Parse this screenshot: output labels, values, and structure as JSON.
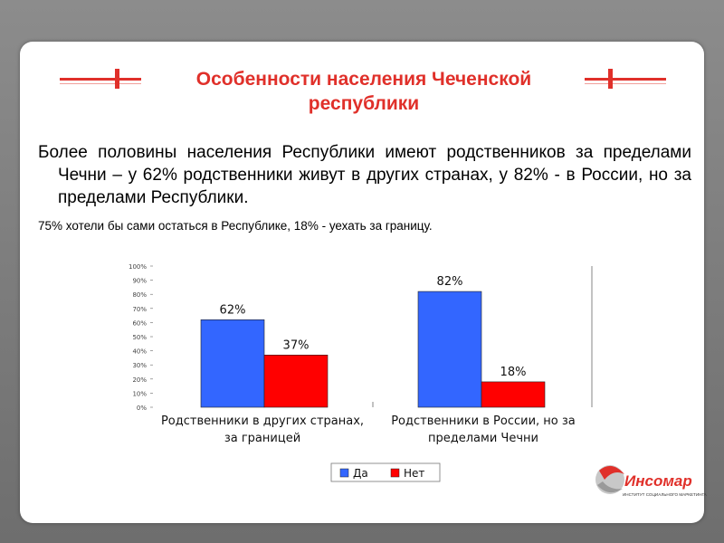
{
  "title": "Особенности населения Чеченской республики",
  "paragraph_main": "Более половины населения Республики имеют родственников за пределами Чечни – у 62% родственники живут в других странах, у 82% - в России, но за пределами Республики.",
  "paragraph_secondary": "75% хотели бы сами остаться в Республике, 18% - уехать за границу.",
  "colors": {
    "accent": "#e0302a",
    "series_da": "#3366ff",
    "series_net": "#ff0000"
  },
  "chart_data": {
    "type": "bar",
    "categories": [
      "Родственники в других странах, за границей",
      "Родственники в России, но за пределами Чечни"
    ],
    "category_lines": [
      [
        "Родственники в других странах,",
        "за границей"
      ],
      [
        "Родственники в России, но за",
        "пределами Чечни"
      ]
    ],
    "series": [
      {
        "name": "Да",
        "values": [
          62,
          82
        ],
        "labels": [
          "62%",
          "82%"
        ]
      },
      {
        "name": "Нет",
        "values": [
          37,
          18
        ],
        "labels": [
          "37%",
          "18%"
        ]
      }
    ],
    "ylim": [
      0,
      100
    ],
    "yticks": [
      "0%",
      "10%",
      "20%",
      "30%",
      "40%",
      "50%",
      "60%",
      "70%",
      "80%",
      "90%",
      "100%"
    ],
    "legend_position": "bottom",
    "grid": false
  },
  "logo": {
    "name": "Инсомар",
    "tagline": "ИНСТИТУТ СОЦИАЛЬНОГО МАРКЕТИНГА"
  }
}
